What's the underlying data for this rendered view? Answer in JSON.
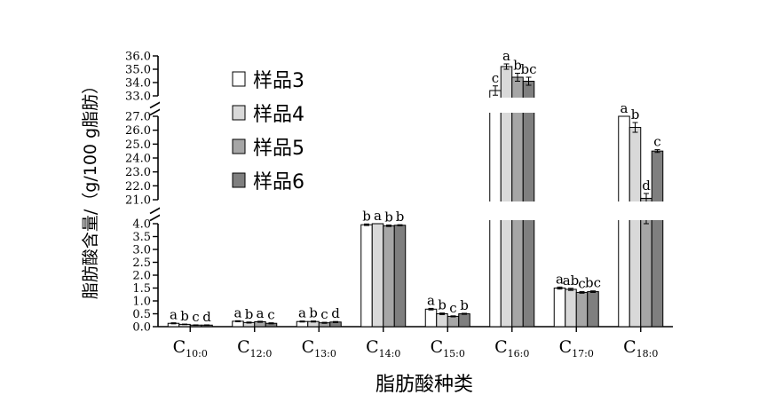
{
  "chart_data": {
    "type": "bar",
    "xlabel": "脂肪酸种类",
    "ylabel": "脂肪酸含量/（g/100 g脂肪）",
    "categories": [
      {
        "main": "C",
        "sub": "10:0"
      },
      {
        "main": "C",
        "sub": "12:0"
      },
      {
        "main": "C",
        "sub": "13:0"
      },
      {
        "main": "C",
        "sub": "14:0"
      },
      {
        "main": "C",
        "sub": "15:0"
      },
      {
        "main": "C",
        "sub": "16:0"
      },
      {
        "main": "C",
        "sub": "17:0"
      },
      {
        "main": "C",
        "sub": "18:0"
      }
    ],
    "series": [
      {
        "name": "样品3",
        "color": "#ffffff",
        "values": [
          0.13,
          0.21,
          0.2,
          3.96,
          0.68,
          33.4,
          1.5,
          27.4
        ],
        "errors": [
          0.02,
          0.02,
          0.02,
          0.03,
          0.03,
          0.35,
          0.04,
          0.35
        ],
        "letters": [
          "a",
          "a",
          "a",
          "b",
          "a",
          "c",
          "a",
          "a"
        ]
      },
      {
        "name": "样品4",
        "color": "#d9d9d9",
        "values": [
          0.09,
          0.16,
          0.2,
          4.14,
          0.5,
          35.2,
          1.45,
          26.2
        ],
        "errors": [
          0.01,
          0.02,
          0.02,
          0.03,
          0.03,
          0.2,
          0.04,
          0.35
        ],
        "letters": [
          "b",
          "b",
          "b",
          "a",
          "b",
          "a",
          "ab",
          "b"
        ]
      },
      {
        "name": "样品5",
        "color": "#a6a6a6",
        "values": [
          0.06,
          0.19,
          0.15,
          3.92,
          0.4,
          34.4,
          1.33,
          21.1
        ],
        "errors": [
          0.01,
          0.02,
          0.02,
          0.03,
          0.02,
          0.3,
          0.03,
          0.35
        ],
        "letters": [
          "c",
          "a",
          "c",
          "b",
          "c",
          "b",
          "c",
          "d"
        ]
      },
      {
        "name": "样品6",
        "color": "#7f7f7f",
        "values": [
          0.06,
          0.13,
          0.18,
          3.94,
          0.5,
          34.1,
          1.36,
          24.5
        ],
        "errors": [
          0.01,
          0.02,
          0.02,
          0.02,
          0.02,
          0.3,
          0.03,
          0.1
        ],
        "letters": [
          "d",
          "c",
          "d",
          "b",
          "b",
          "bc",
          "bc",
          "c"
        ]
      }
    ],
    "y_segments": [
      {
        "ylim": [
          0,
          4.0
        ],
        "ticks": [
          "0.0",
          "0.5",
          "1.0",
          "1.5",
          "2.0",
          "2.5",
          "3.0",
          "3.5",
          "4.0"
        ]
      },
      {
        "ylim": [
          21.0,
          27.0
        ],
        "ticks": [
          "21.0",
          "22.0",
          "23.0",
          "24.0",
          "25.0",
          "26.0",
          "27.0"
        ]
      },
      {
        "ylim": [
          33.0,
          36.0
        ],
        "ticks": [
          "33.0",
          "34.0",
          "35.0",
          "36.0"
        ]
      }
    ],
    "y_axis_breaks": true,
    "legend_position": "top-left",
    "grid": false
  }
}
